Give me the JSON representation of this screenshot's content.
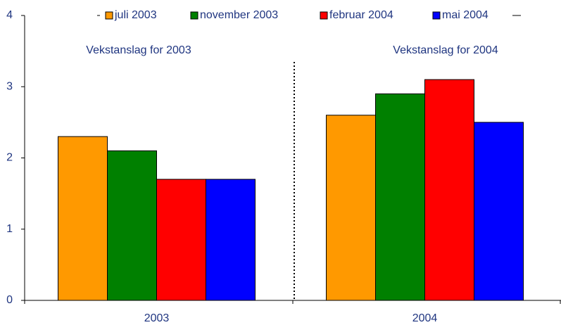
{
  "chart_data": {
    "type": "bar",
    "categories": [
      "2003",
      "2004"
    ],
    "series": [
      {
        "name": "juli 2003",
        "color": "#ff9900",
        "values": [
          2.3,
          2.6
        ]
      },
      {
        "name": "november 2003",
        "color": "#008000",
        "values": [
          2.1,
          2.9
        ]
      },
      {
        "name": "februar 2004",
        "color": "#ff0000",
        "values": [
          1.7,
          3.1
        ]
      },
      {
        "name": "mai 2004",
        "color": "#0000ff",
        "values": [
          1.7,
          2.5
        ]
      }
    ],
    "annotations": [
      "Vekstanslag for 2003",
      "Vekstanslag for 2004"
    ],
    "ylim": [
      0,
      4
    ],
    "yticks": [
      0,
      1,
      2,
      3,
      4
    ],
    "legend": "top"
  }
}
